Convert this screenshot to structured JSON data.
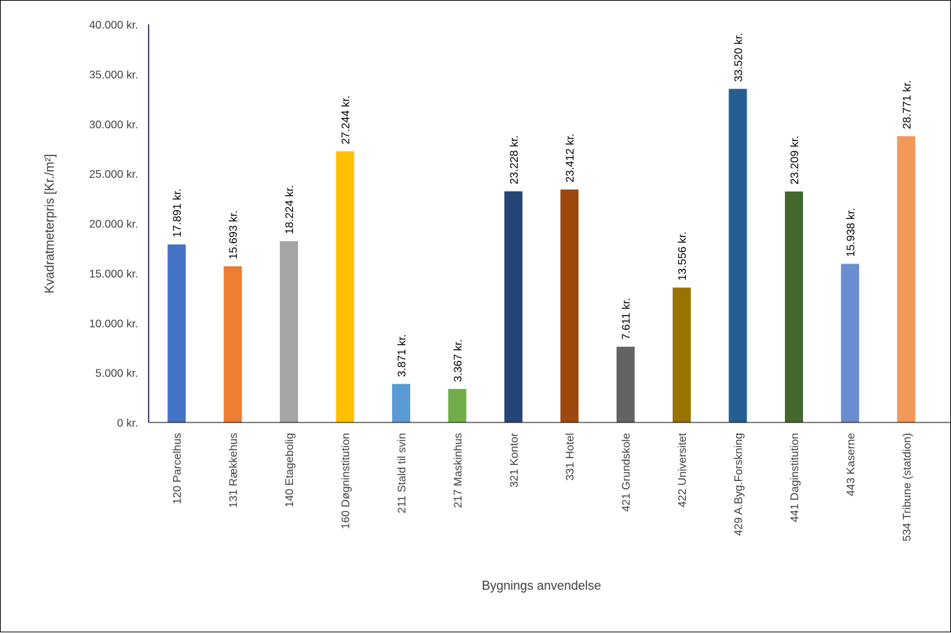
{
  "chart_data": {
    "type": "bar",
    "title": "",
    "xlabel": "Bygnings anvendelse",
    "ylabel": "Kvadratmeterpris [Kr./m²]",
    "ylim": [
      0,
      40000
    ],
    "yticks": [
      0,
      5000,
      10000,
      15000,
      20000,
      25000,
      30000,
      35000,
      40000
    ],
    "ytick_labels": [
      "0 kr.",
      "5.000 kr.",
      "10.000 kr.",
      "15.000 kr.",
      "20.000 kr.",
      "25.000 kr.",
      "30.000 kr.",
      "35.000 kr.",
      "40.000 kr."
    ],
    "grid": false,
    "legend": "none",
    "categories": [
      "120 Parcelhus",
      "131 Rækkehus",
      "140 Etagebolig",
      "160 Døgninstitution",
      "211 Stald til svin",
      "217 Maskinhus",
      "321 Kontor",
      "331 Hotel",
      "421 Grundskole",
      "422 Universitet",
      "429 A.Byg.Forskning",
      "441 Daginstitution",
      "443 Kaserne",
      "534 Tribune (statdion)"
    ],
    "values": [
      17891,
      15693,
      18224,
      27244,
      3871,
      3367,
      23228,
      23412,
      7611,
      13556,
      33520,
      23209,
      15938,
      28771
    ],
    "value_labels": [
      "17.891 kr.",
      "15.693 kr.",
      "18.224 kr.",
      "27.244 kr.",
      "3.871 kr.",
      "3.367 kr.",
      "23.228 kr.",
      "23.412 kr.",
      "7.611 kr.",
      "13.556 kr.",
      "33.520 kr.",
      "23.209 kr.",
      "15.938 kr.",
      "28.771 kr."
    ],
    "colors": [
      "#4472C4",
      "#ED7D31",
      "#A5A5A5",
      "#FFC000",
      "#5B9BD5",
      "#70AD47",
      "#264478",
      "#9E480E",
      "#636363",
      "#997300",
      "#255E91",
      "#43682B",
      "#698ED0",
      "#F1975A"
    ]
  }
}
